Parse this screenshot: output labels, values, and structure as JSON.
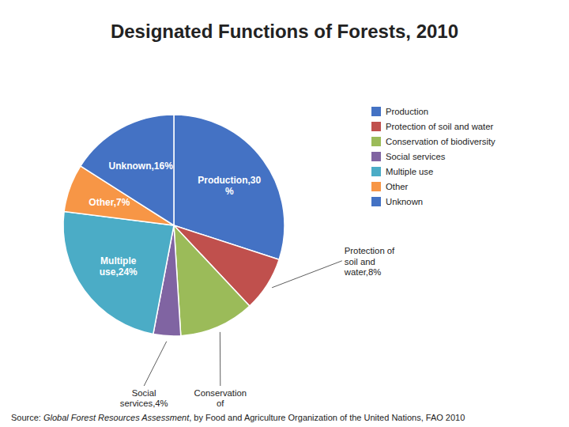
{
  "chart_data": {
    "type": "pie",
    "title": "Designated Functions of Forests, 2010",
    "categories": [
      "Production",
      "Protection of soil and water",
      "Conservation of biodiversity",
      "Social services",
      "Multiple use",
      "Other",
      "Unknown"
    ],
    "values": [
      30,
      8,
      11,
      4,
      24,
      7,
      16
    ],
    "value_labels": [
      "Production,30\n%",
      "Protection of\nsoil and\nwater,8%",
      "Conservation\nof",
      "Social\nservices,4%",
      "Multiple\nuse,24%",
      "Other,7%",
      "Unknown,16%"
    ],
    "colors": [
      "#4472C4",
      "#C0504D",
      "#9BBB59",
      "#8064A2",
      "#4BACC6",
      "#F79646",
      "#4472C4"
    ],
    "data_labels": true,
    "legend": "right",
    "annotations": [
      "Source: ",
      "Global Forest Resources Assessment",
      ", by Food and Agriculture Organization of the United Nations, FAO 2010"
    ]
  }
}
